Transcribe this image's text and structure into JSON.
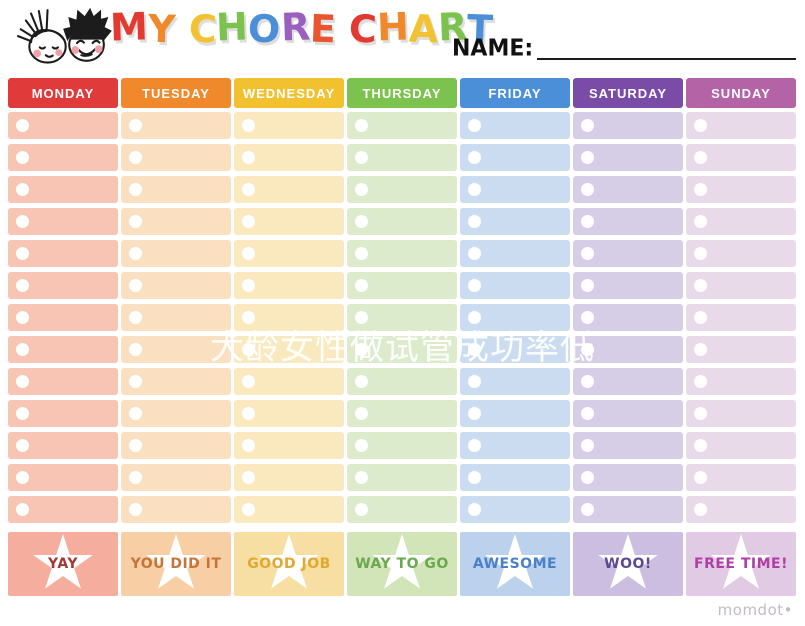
{
  "header": {
    "kids_icon": "girl-and-boy-cartoon-faces",
    "title": "MY CHORE CHART",
    "title_letters": [
      {
        "ch": "M",
        "color": "#E23A30"
      },
      {
        "ch": "Y",
        "color": "#F0882C"
      },
      {
        "ch": " ",
        "color": ""
      },
      {
        "ch": "C",
        "color": "#F2C230"
      },
      {
        "ch": "H",
        "color": "#7CC24E"
      },
      {
        "ch": "O",
        "color": "#4B8FD9"
      },
      {
        "ch": "R",
        "color": "#9B5FC0"
      },
      {
        "ch": "E",
        "color": "#E8552F"
      },
      {
        "ch": " ",
        "color": ""
      },
      {
        "ch": "C",
        "color": "#E23A30"
      },
      {
        "ch": "H",
        "color": "#F0882C"
      },
      {
        "ch": "A",
        "color": "#F2C230"
      },
      {
        "ch": "R",
        "color": "#7CC24E"
      },
      {
        "ch": "T",
        "color": "#4B8FD9"
      }
    ],
    "name_label": "NAME:",
    "name_value": ""
  },
  "table": {
    "rows_per_column": 13,
    "columns": [
      {
        "day": "MONDAY",
        "header_color": "#E13A3A",
        "row_color": "#F8C4B4",
        "footer_bg": "#F5AE9E",
        "footer_label": "YAY",
        "footer_text_color": "#A13B31"
      },
      {
        "day": "TUESDAY",
        "header_color": "#F0882C",
        "row_color": "#FBDFC1",
        "footer_bg": "#F8CEA4",
        "footer_label": "YOU DID IT",
        "footer_text_color": "#C4763A"
      },
      {
        "day": "WEDNESDAY",
        "header_color": "#F1C12F",
        "row_color": "#FAE8BE",
        "footer_bg": "#F7DEA2",
        "footer_label": "GOOD JOB",
        "footer_text_color": "#E0A82F"
      },
      {
        "day": "THURSDAY",
        "header_color": "#7CC24E",
        "row_color": "#DCEBCB",
        "footer_bg": "#D2E5B8",
        "footer_label": "WAY TO GO",
        "footer_text_color": "#69A94E"
      },
      {
        "day": "FRIDAY",
        "header_color": "#4B8FD9",
        "row_color": "#CBDCF0",
        "footer_bg": "#BCD2EC",
        "footer_label": "AWESOME",
        "footer_text_color": "#4A7FC9"
      },
      {
        "day": "SATURDAY",
        "header_color": "#7B4BA8",
        "row_color": "#D6CEE7",
        "footer_bg": "#CBBEE1",
        "footer_label": "WOO!",
        "footer_text_color": "#5B4A8F"
      },
      {
        "day": "SUNDAY",
        "header_color": "#B363A6",
        "row_color": "#E9DAEA",
        "footer_bg": "#E1CAE3",
        "footer_label": "FREE TIME!",
        "footer_text_color": "#B03FA5"
      }
    ]
  },
  "overlay_watermark": {
    "text": "大龄女性做试管成功率低"
  },
  "brand": {
    "text": "momdot•"
  }
}
